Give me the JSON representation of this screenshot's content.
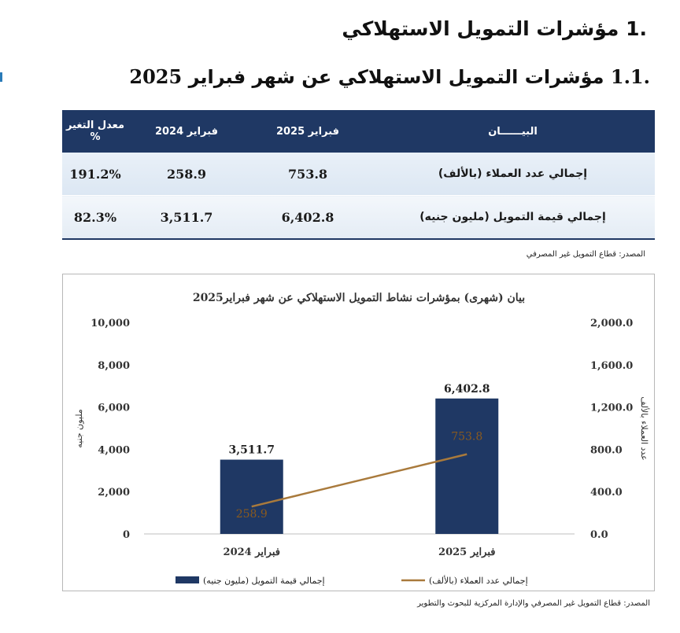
{
  "headings": {
    "section": ".1 مؤشرات التمويل الاستهلاكي",
    "subsection_prefix": ".1.1",
    "subsection_text": "مؤشرات التمويل الاستهلاكي عن شهر فبراير",
    "subsection_year": "2025"
  },
  "table": {
    "headers": [
      "البيــــــان",
      "فبراير 2025",
      "فبراير 2024",
      "معدل التغير %"
    ],
    "rows": [
      {
        "label": "إجمالي عدد العملاء (بالألف)",
        "feb2025": "753.8",
        "feb2024": "258.9",
        "change": "191.2%"
      },
      {
        "label": "إجمالي قيمة التمويل (مليون جنيه)",
        "feb2025": "6,402.8",
        "feb2024": "3,511.7",
        "change": "82.3%"
      }
    ]
  },
  "source_table": "المصدر: قطاع التمويل غير المصرفي",
  "chart_data": {
    "type": "bar+line",
    "title": "بيان (شهرى) بمؤشرات نشاط التمويل الاستهلاكي عن شهر فبراير2025",
    "categories": [
      "فبراير 2024",
      "فبراير 2025"
    ],
    "y_left": {
      "label": "مليون جنيه",
      "ticks": [
        "0",
        "2,000",
        "4,000",
        "6,000",
        "8,000",
        "10,000"
      ],
      "range": [
        0,
        10000
      ]
    },
    "y_right": {
      "label": "عدد العملاء بالألف",
      "ticks": [
        "0.0",
        "400.0",
        "800.0",
        "1,200.0",
        "1,600.0",
        "2,000.0"
      ],
      "range": [
        0,
        2000
      ]
    },
    "series": [
      {
        "name": "إجمالي قيمة التمويل (مليون جنيه)",
        "kind": "bar",
        "axis": "left",
        "values": [
          3511.7,
          6402.8
        ],
        "labels": [
          "3,511.7",
          "6,402.8"
        ],
        "color": "#1f3864"
      },
      {
        "name": "إجمالي عدد العملاء (بالألف)",
        "kind": "line",
        "axis": "right",
        "values": [
          258.9,
          753.8
        ],
        "labels": [
          "258.9",
          "753.8"
        ],
        "color": "#a97a3c"
      }
    ],
    "legend_placement": "bottom"
  },
  "source_chart": "المصدر: قطاع التمويل غير المصرفي والإدارة المركزية للبحوث والتطوير"
}
